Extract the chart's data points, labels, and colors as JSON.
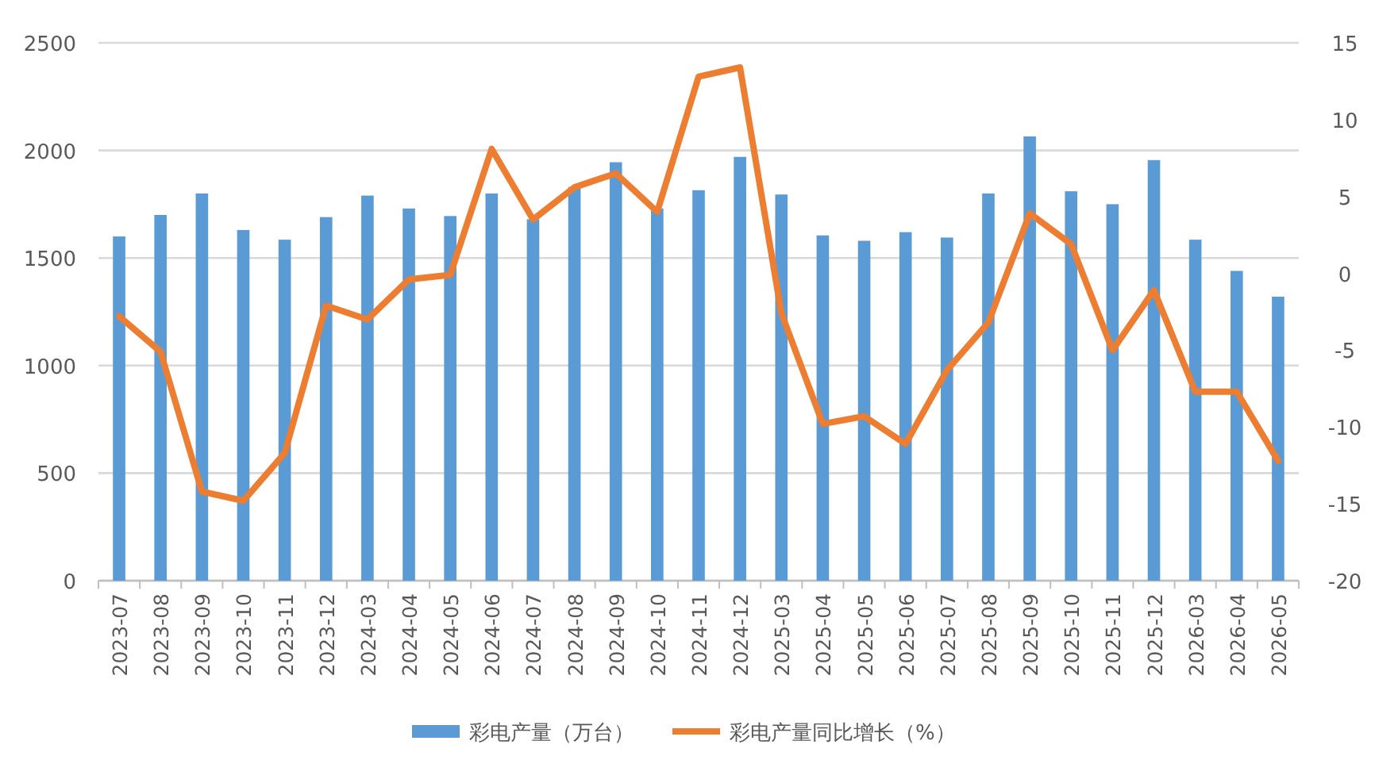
{
  "chart_data": {
    "type": "bar",
    "categories": [
      "2023-07",
      "2023-08",
      "2023-09",
      "2023-10",
      "2023-11",
      "2023-12",
      "2024-03",
      "2024-04",
      "2024-05",
      "2024-06",
      "2024-07",
      "2024-08",
      "2024-09",
      "2024-10",
      "2024-11",
      "2024-12",
      "2025-03",
      "2025-04",
      "2025-05",
      "2025-06",
      "2025-07",
      "2025-08",
      "2025-09",
      "2025-10",
      "2025-11",
      "2025-12",
      "2026-03",
      "2026-04",
      "2026-05"
    ],
    "series": [
      {
        "name": "彩电产量（万台）",
        "color": "#5b9bd5",
        "values": [
          1600,
          1700,
          1800,
          1630,
          1585,
          1690,
          1790,
          1730,
          1695,
          1800,
          1680,
          1830,
          1945,
          1730,
          1815,
          1970,
          1795,
          1605,
          1580,
          1620,
          1595,
          1800,
          2065,
          1810,
          1750,
          1955,
          1585,
          1440,
          1320
        ]
      },
      {
        "name": "彩电产量同比增长（%）",
        "type": "line",
        "axis": "y2",
        "color": "#ed7d31",
        "values": [
          -2.8,
          -5.1,
          -14.2,
          -14.8,
          -11.7,
          -2.1,
          -3.0,
          -0.4,
          -0.1,
          8.1,
          3.5,
          5.6,
          6.5,
          4.0,
          12.8,
          13.4,
          -2.6,
          -9.8,
          -9.3,
          -11.1,
          -6.3,
          -3.2,
          3.9,
          1.9,
          -5.0,
          -1.1,
          -7.7,
          -7.7,
          -12.2
        ]
      }
    ],
    "ylim": [
      0,
      2500
    ],
    "yticks": [
      0,
      500,
      1000,
      1500,
      2000,
      2500
    ],
    "y2lim": [
      -20,
      15
    ],
    "y2ticks": [
      -20,
      -15,
      -10,
      -5,
      0,
      5,
      10,
      15
    ],
    "grid": "y",
    "legend": "bottom"
  }
}
